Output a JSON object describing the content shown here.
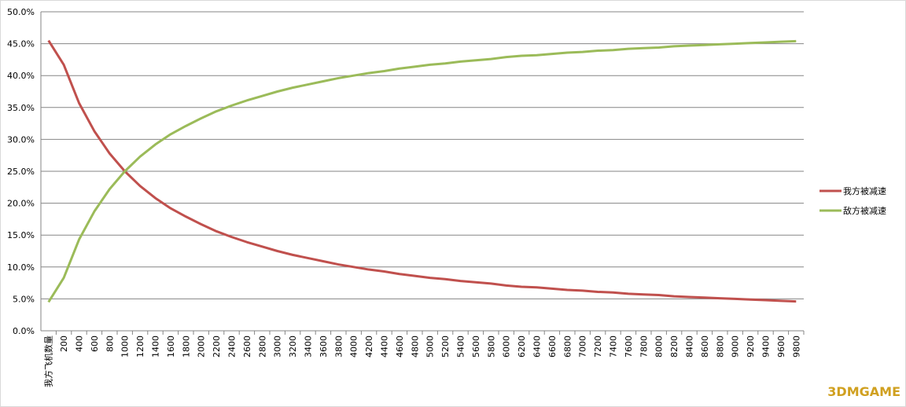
{
  "chart_data": {
    "type": "line",
    "categories": [
      "我方飞机数量",
      "200",
      "400",
      "600",
      "800",
      "1000",
      "1200",
      "1400",
      "1600",
      "1800",
      "2000",
      "2200",
      "2400",
      "2600",
      "2800",
      "3000",
      "3200",
      "3400",
      "3600",
      "3800",
      "4000",
      "4200",
      "4400",
      "4600",
      "4800",
      "5000",
      "5200",
      "5400",
      "5600",
      "5800",
      "6000",
      "6200",
      "6400",
      "6600",
      "6800",
      "7000",
      "7200",
      "7400",
      "7600",
      "7800",
      "8000",
      "8200",
      "8400",
      "8600",
      "8800",
      "9000",
      "9200",
      "9400",
      "9600",
      "9800"
    ],
    "series": [
      {
        "name": "我方被减速",
        "color": "#c0504d",
        "values": [
          45.5,
          41.7,
          35.7,
          31.3,
          27.8,
          25.0,
          22.7,
          20.8,
          19.2,
          17.9,
          16.7,
          15.6,
          14.7,
          13.9,
          13.2,
          12.5,
          11.9,
          11.4,
          10.9,
          10.4,
          10.0,
          9.6,
          9.3,
          8.9,
          8.6,
          8.3,
          8.1,
          7.8,
          7.6,
          7.4,
          7.1,
          6.9,
          6.8,
          6.6,
          6.4,
          6.3,
          6.1,
          6.0,
          5.8,
          5.7,
          5.6,
          5.4,
          5.3,
          5.2,
          5.1,
          5.0,
          4.9,
          4.8,
          4.7,
          4.6
        ]
      },
      {
        "name": "敌方被减速",
        "color": "#9bbb59",
        "values": [
          4.5,
          8.3,
          14.3,
          18.7,
          22.2,
          25.0,
          27.3,
          29.2,
          30.8,
          32.1,
          33.3,
          34.4,
          35.3,
          36.1,
          36.8,
          37.5,
          38.1,
          38.6,
          39.1,
          39.6,
          40.0,
          40.4,
          40.7,
          41.1,
          41.4,
          41.7,
          41.9,
          42.2,
          42.4,
          42.6,
          42.9,
          43.1,
          43.2,
          43.4,
          43.6,
          43.7,
          43.9,
          44.0,
          44.2,
          44.3,
          44.4,
          44.6,
          44.7,
          44.8,
          44.9,
          45.0,
          45.1,
          45.2,
          45.3,
          45.4
        ]
      }
    ],
    "ylim": [
      0,
      50
    ],
    "yticks": [
      {
        "value": 0,
        "label": "0.0%"
      },
      {
        "value": 5,
        "label": "5.0%"
      },
      {
        "value": 10,
        "label": "10.0%"
      },
      {
        "value": 15,
        "label": "15.0%"
      },
      {
        "value": 20,
        "label": "20.0%"
      },
      {
        "value": 25,
        "label": "25.0%"
      },
      {
        "value": 30,
        "label": "30.0%"
      },
      {
        "value": 35,
        "label": "35.0%"
      },
      {
        "value": 40,
        "label": "40.0%"
      },
      {
        "value": 45,
        "label": "45.0%"
      },
      {
        "value": 50,
        "label": "50.0%"
      }
    ],
    "grid": true,
    "legend": "right",
    "watermark": "3DMGAME"
  }
}
